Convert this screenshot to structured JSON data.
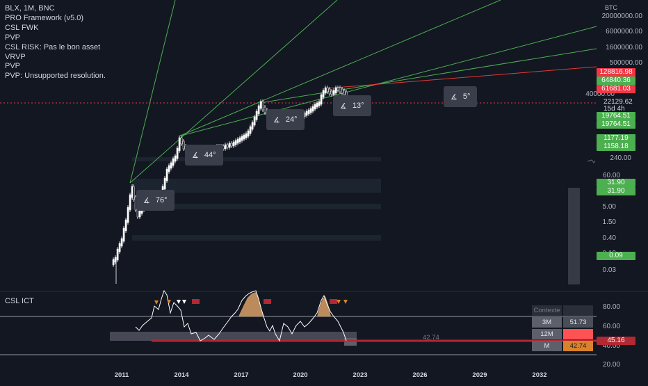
{
  "legend_lines": [
    "BLX, 1M, BNC",
    "PRO Framework (v5.0)",
    "CSL FWK",
    "PVP",
    "CSL RISK: Pas le bon asset",
    "VRVP",
    "PVP",
    "PVP: Unsupported resolution."
  ],
  "indicator_title": "CSL ICT",
  "axis_unit": "BTC",
  "price_axis_labels": [
    "20000000.00",
    "6000000.00",
    "1600000.00",
    "500000.00",
    "40000.00",
    "240.00",
    "60.00",
    "5.00",
    "1.50",
    "0.40",
    "0.10",
    "0.03"
  ],
  "price_tags": [
    {
      "label": "128816.98",
      "color": "#f23645"
    },
    {
      "label": "64840.36",
      "color": "#4caf50"
    },
    {
      "label": "61681.03",
      "color": "#f23645"
    },
    {
      "label": "19764.51",
      "color": "#4caf50"
    },
    {
      "label": "19764.51",
      "color": "#4caf50"
    },
    {
      "label": "1177.19",
      "color": "#4caf50"
    },
    {
      "label": "1158.18",
      "color": "#4caf50"
    },
    {
      "label": "31.90",
      "color": "#4caf50"
    },
    {
      "label": "31.90",
      "color": "#4caf50"
    },
    {
      "label": "0.09",
      "color": "#4caf50"
    }
  ],
  "current_price": {
    "value": "22129.62",
    "countdown": "15d 4h"
  },
  "indicator_axis_labels": [
    "80.00",
    "60.00",
    "40.00",
    "20.00"
  ],
  "indicator_tag": {
    "label": "45.16",
    "color": "#b22833"
  },
  "indicator_mid_label": "42.74",
  "angles": [
    "76°",
    "44°",
    "24°",
    "13°",
    "5°"
  ],
  "context_table": {
    "header": "Contexte",
    "rows": [
      {
        "label": "3M",
        "value": "51.73",
        "bg": "#4a4e59"
      },
      {
        "label": "12M",
        "value": "",
        "bg": "#ff5252"
      },
      {
        "label": "M",
        "value": "42.74",
        "bg": "#d9822b"
      }
    ]
  },
  "x_axis_labels": [
    "2011",
    "2014",
    "2017",
    "2020",
    "2023",
    "2026",
    "2029",
    "2032"
  ],
  "colors": {
    "background": "#131722",
    "up": "#ffffff",
    "trend_green": "#4caf50",
    "trend_red": "#e53935",
    "area": "#d9a066"
  }
}
